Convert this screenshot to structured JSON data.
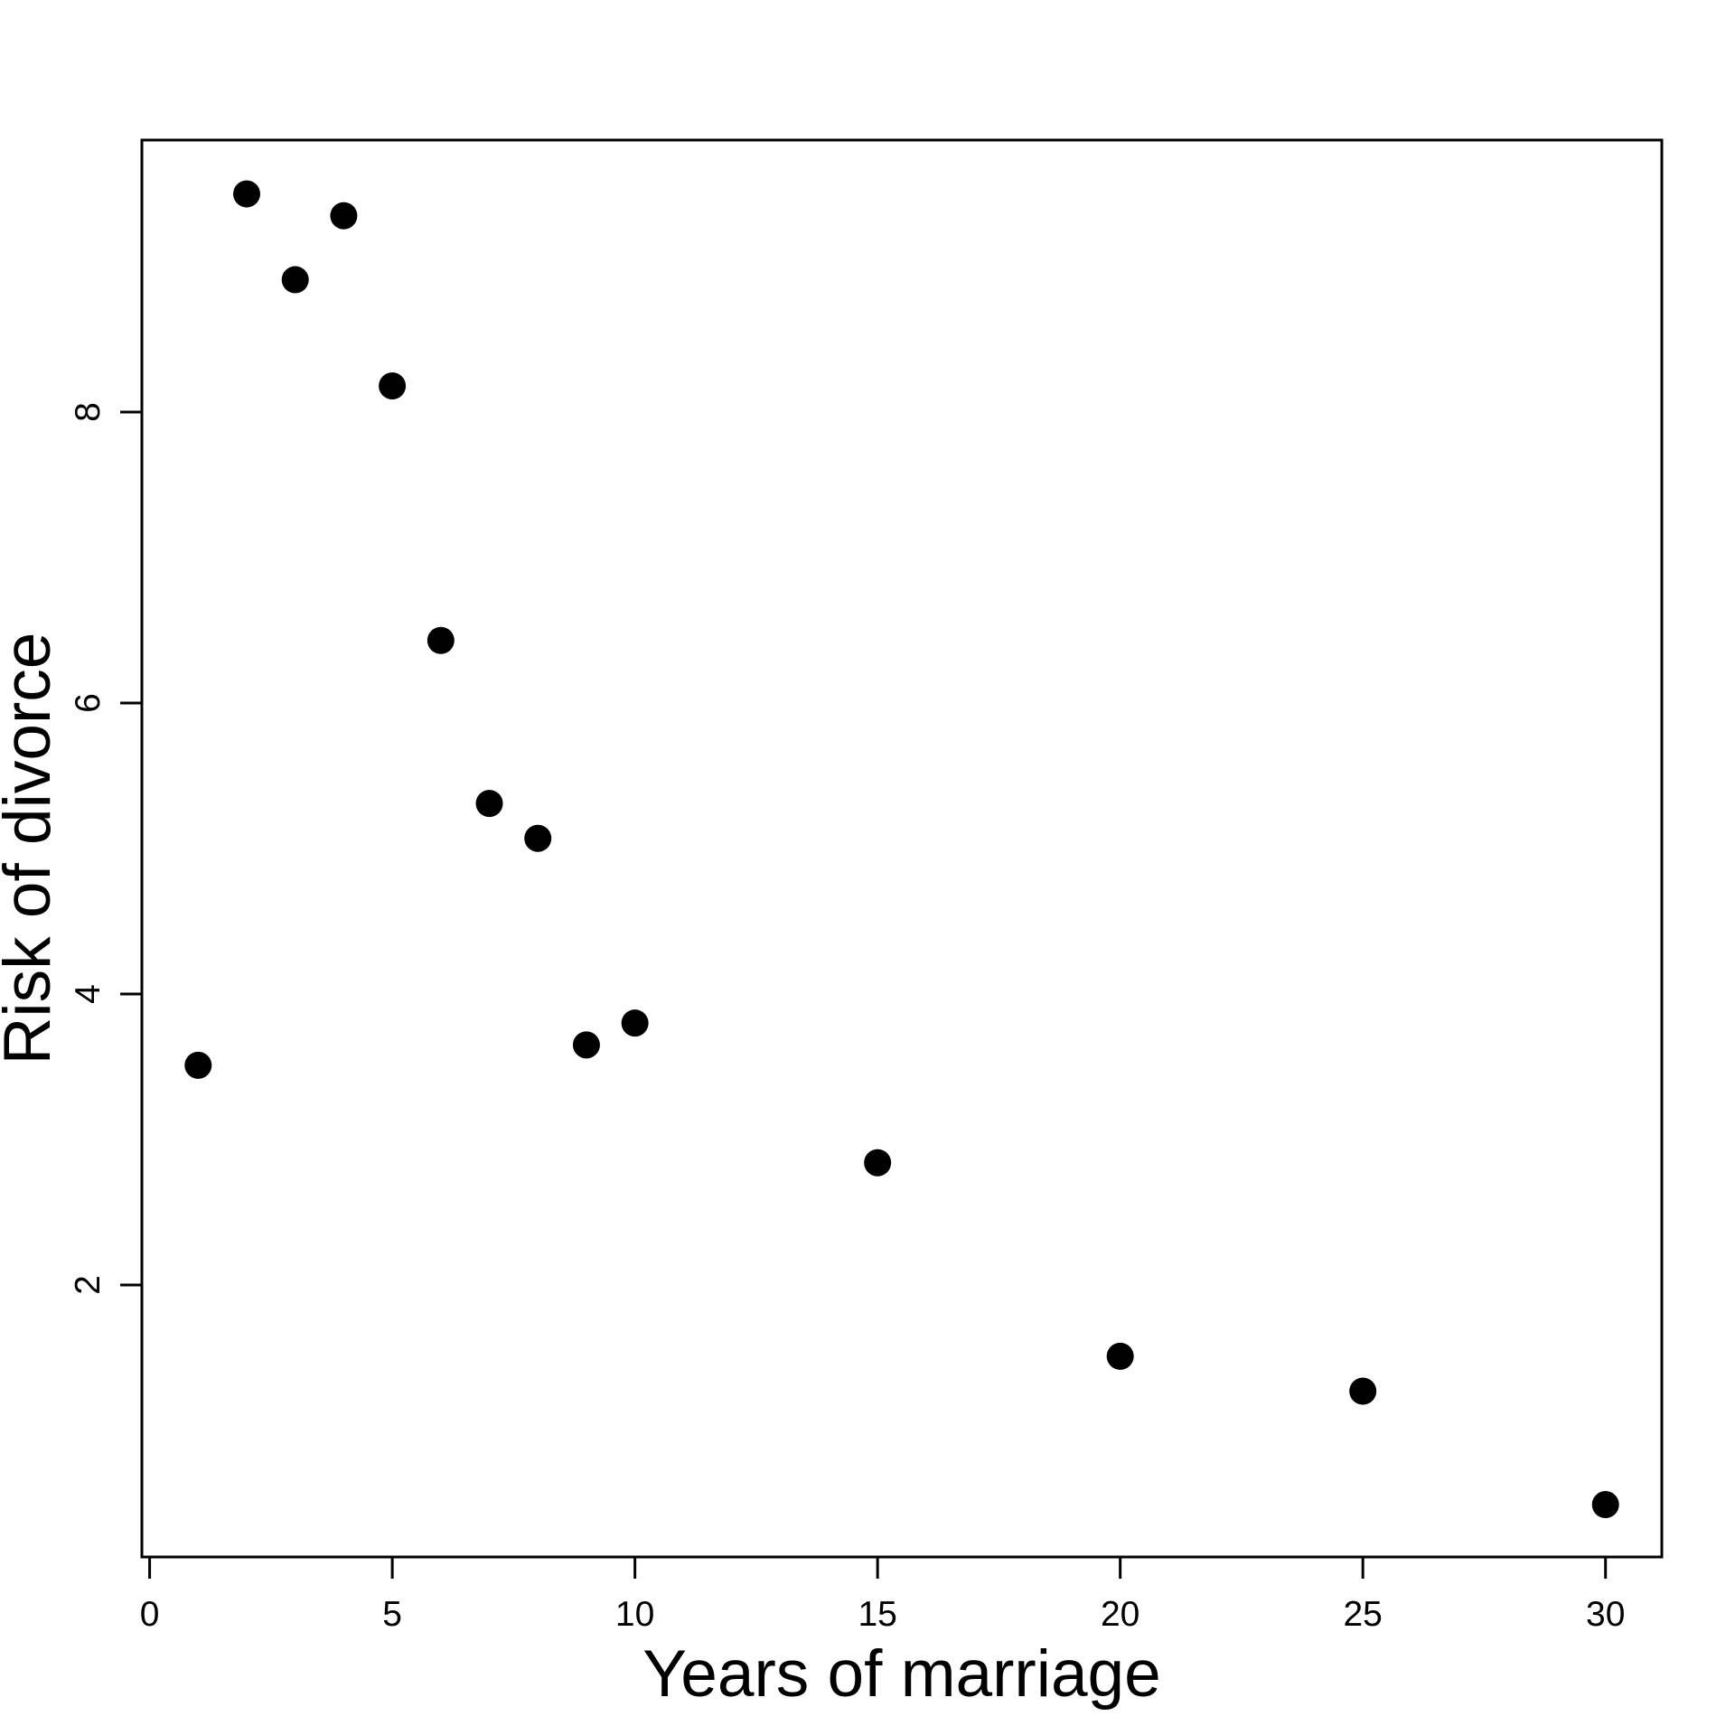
{
  "chart_data": {
    "type": "scatter",
    "title": "",
    "xlabel": "Years of marriage",
    "ylabel": "Risk of divorce",
    "x": [
      1,
      2,
      3,
      4,
      5,
      6,
      7,
      8,
      9,
      10,
      15,
      20,
      25,
      30
    ],
    "y": [
      3.51,
      9.5,
      8.91,
      9.35,
      8.18,
      6.43,
      5.31,
      5.07,
      3.65,
      3.8,
      2.84,
      1.51,
      1.27,
      0.49
    ],
    "x_ticks": [
      0,
      5,
      10,
      15,
      20,
      25,
      30
    ],
    "y_ticks": [
      2,
      4,
      6,
      8
    ],
    "xlim": [
      -0.16,
      31.16
    ],
    "ylim": [
      0.13,
      9.87
    ],
    "grid": false,
    "legend": null,
    "point_shape": "filled-circle",
    "point_color": "#000000",
    "axis_color": "#000000",
    "background_color": "#ffffff"
  }
}
